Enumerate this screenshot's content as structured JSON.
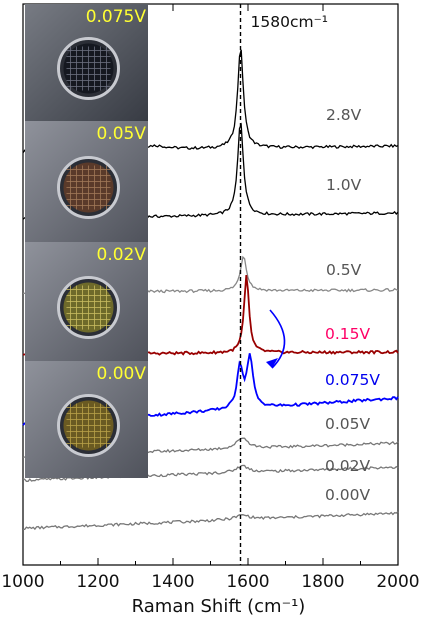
{
  "chart_data": {
    "type": "line",
    "xlabel": "Raman Shift (cm⁻¹)",
    "xlim": [
      1000,
      2000
    ],
    "xticks": [
      1000,
      1200,
      1400,
      1600,
      1800,
      2000
    ],
    "peak_line": {
      "x": 1580,
      "label": "1580cm⁻¹"
    },
    "series": [
      {
        "name": "2.8V",
        "color": "#000000",
        "label_color": "#555555",
        "peaks": [
          {
            "x": 1580,
            "height": 4.6,
            "width": 9
          },
          {
            "x": 1350,
            "height": 0.18,
            "width": 40
          }
        ],
        "slope": 0.25
      },
      {
        "name": "1.0V",
        "color": "#000000",
        "label_color": "#555555",
        "peaks": [
          {
            "x": 1580,
            "height": 4.3,
            "width": 9
          }
        ],
        "slope": 0.25
      },
      {
        "name": "0.5V",
        "color": "#888888",
        "label_color": "#555555",
        "peaks": [
          {
            "x": 1588,
            "height": 1.6,
            "width": 10
          }
        ],
        "slope": 0.1
      },
      {
        "name": "0.15V",
        "color": "#990000",
        "label_color": "#ff0066",
        "peaks": [
          {
            "x": 1596,
            "height": 3.5,
            "width": 8
          }
        ],
        "slope": 0.1
      },
      {
        "name": "0.075V",
        "color": "#0000ff",
        "label_color": "#0000ee",
        "peaks": [
          {
            "x": 1578,
            "height": 1.9,
            "width": 9
          },
          {
            "x": 1605,
            "height": 2.3,
            "width": 10
          }
        ],
        "slope": 1.2
      },
      {
        "name": "0.05V",
        "color": "#777777",
        "label_color": "#555555",
        "peaks": [
          {
            "x": 1585,
            "height": 0.5,
            "width": 18
          }
        ],
        "slope": 0.6
      },
      {
        "name": "0.02V",
        "color": "#777777",
        "label_color": "#555555",
        "peaks": [
          {
            "x": 1585,
            "height": 0.3,
            "width": 20
          }
        ],
        "slope": 0.6
      },
      {
        "name": "0.00V",
        "color": "#777777",
        "label_color": "#555555",
        "peaks": [
          {
            "x": 1585,
            "height": 0.2,
            "width": 22
          }
        ],
        "slope": 0.7
      }
    ],
    "photos": [
      {
        "label": "0.075V",
        "tone": "#4a4f5a",
        "hole": "#151820",
        "mesh": "#6c7080"
      },
      {
        "label": "0.05V",
        "tone": "#6a6e7a",
        "hole": "#5a3a2a",
        "mesh": "#a07858"
      },
      {
        "label": "0.02V",
        "tone": "#6a6e7a",
        "hole": "#6e6a2a",
        "mesh": "#c8bc60"
      },
      {
        "label": "0.00V",
        "tone": "#6a6e7a",
        "hole": "#6a5a22",
        "mesh": "#b8a048"
      }
    ]
  }
}
